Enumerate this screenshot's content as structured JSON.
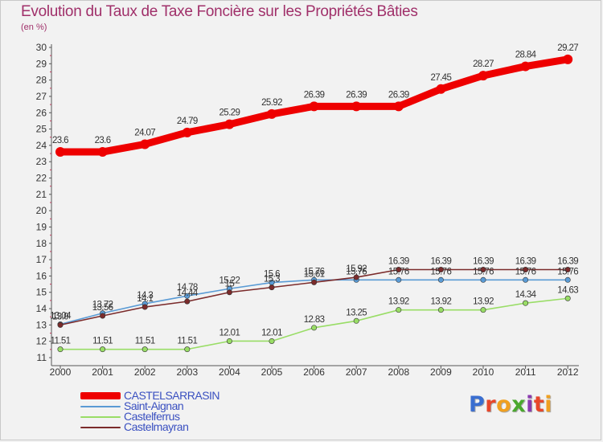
{
  "header": {
    "title": "Evolution du Taux de Taxe Foncière sur les Propriétés Bâties",
    "subtitle": "(en %)"
  },
  "colors": {
    "title": "#a0306a",
    "axis": "#555555",
    "legend_text": "#3a50c0"
  },
  "logo": {
    "text": "Proxiti",
    "letter_colors": [
      "#3a6ed0",
      "#e8462a",
      "#f0a020",
      "#4aa82e",
      "#8a3ab0",
      "#e8462a",
      "#f0a020"
    ]
  },
  "chart_data": {
    "type": "line",
    "title": "Evolution du Taux de Taxe Foncière sur les Propriétés Bâties",
    "subtitle": "(en %)",
    "x": [
      "2000",
      "2001",
      "2002",
      "2003",
      "2004",
      "2005",
      "2006",
      "2007",
      "2008",
      "2009",
      "2010",
      "2011",
      "2012"
    ],
    "ylim": [
      11,
      30
    ],
    "yticks": [
      "11",
      "12",
      "13",
      "14",
      "15",
      "16",
      "17",
      "18",
      "19",
      "20",
      "21",
      "22",
      "23",
      "24",
      "25",
      "26",
      "27",
      "28",
      "29",
      "30"
    ],
    "grid": false,
    "legend_position": "bottom-left",
    "series": [
      {
        "name": "CASTELSARRASIN",
        "color": "#ee0000",
        "values": [
          23.6,
          23.6,
          24.07,
          24.79,
          25.29,
          25.92,
          26.39,
          26.39,
          26.39,
          27.45,
          28.27,
          28.84,
          29.27
        ],
        "labels": [
          "23.6",
          "23.6",
          "24.07",
          "24.79",
          "25.29",
          "25.92",
          "26.39",
          "26.39",
          "26.39",
          "27.45",
          "28.27",
          "28.84",
          "29.27"
        ]
      },
      {
        "name": "Saint-Aignan",
        "color": "#5a9bd5",
        "values": [
          13.04,
          13.72,
          14.3,
          14.78,
          15.22,
          15.6,
          15.76,
          15.76,
          15.76,
          15.76,
          15.76,
          15.76,
          15.76
        ],
        "labels": [
          "13.04",
          "13.72",
          "14.3",
          "14.78",
          "15.22",
          "15.6",
          "15.76",
          "15.76",
          "15.76",
          "15.76",
          "15.76",
          "15.76",
          "15.76"
        ]
      },
      {
        "name": "Castelferrus",
        "color": "#99dd66",
        "values": [
          11.51,
          11.51,
          11.51,
          11.51,
          12.01,
          12.01,
          12.83,
          13.25,
          13.92,
          13.92,
          13.92,
          14.34,
          14.63
        ],
        "labels": [
          "11.51",
          "11.51",
          "11.51",
          "11.51",
          "12.01",
          "12.01",
          "12.83",
          "13.25",
          "13.92",
          "13.92",
          "13.92",
          "14.34",
          "14.63"
        ]
      },
      {
        "name": "Castelmayran",
        "color": "#7b2b2b",
        "values": [
          13.0,
          13.56,
          14.1,
          14.44,
          15.0,
          15.3,
          15.61,
          15.92,
          16.39,
          16.39,
          16.39,
          16.39,
          16.39
        ],
        "labels": [
          "13.0",
          "13.56",
          "14.1",
          "14.44",
          "15",
          "15.3",
          "15.61",
          "15.92",
          "16.39",
          "16.39",
          "16.39",
          "16.39",
          "16.39"
        ]
      }
    ]
  }
}
